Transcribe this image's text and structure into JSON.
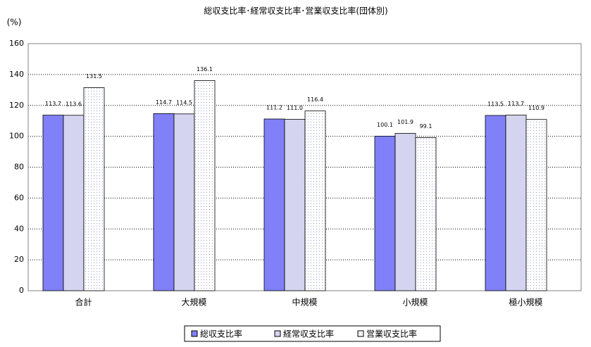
{
  "chart_data": {
    "type": "bar",
    "title": "総収支比率･経常収支比率･営業収支比率(団体別)",
    "y_label": "(%)",
    "categories": [
      "合計",
      "大規模",
      "中規模",
      "小規模",
      "極小規模"
    ],
    "series": [
      {
        "name": "総収支比率",
        "color": "#8080f8",
        "values": [
          113.7,
          114.7,
          111.2,
          100.1,
          113.5
        ],
        "value_labels": [
          "113.7",
          "114.7",
          "111.2",
          "100.1",
          "113.5"
        ]
      },
      {
        "name": "経常収支比率",
        "color": "#d4d4f0",
        "values": [
          113.6,
          114.5,
          111.0,
          101.9,
          113.7
        ],
        "value_labels": [
          "113.6",
          "114.5",
          "111.0",
          "101.9",
          "113.7"
        ]
      },
      {
        "name": "営業収支比率",
        "color": "#ffffff",
        "values": [
          131.5,
          136.1,
          116.4,
          99.1,
          110.9
        ],
        "value_labels": [
          "131.5",
          "136.1",
          "116.4",
          "99.1",
          "110.9"
        ]
      }
    ],
    "ylim": [
      0,
      160
    ],
    "yticks": [
      0,
      20,
      40,
      60,
      80,
      100,
      120,
      140,
      160
    ],
    "grid": true,
    "legend": "bottom"
  }
}
